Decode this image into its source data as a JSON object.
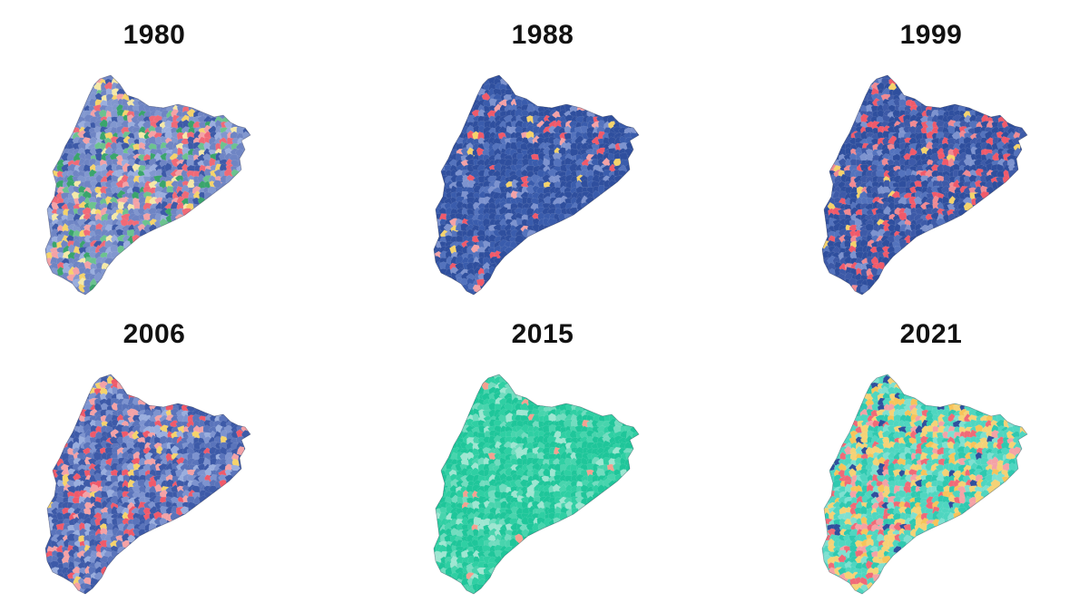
{
  "maps": [
    {
      "year": "1980",
      "palette": [
        "#6f85c4",
        "#8197cf",
        "#3d5aa8",
        "#9aaede",
        "#f06a77",
        "#f4a2a6",
        "#3aa56c",
        "#6cc38f",
        "#f5d36b",
        "#f5e9a8"
      ],
      "weights": [
        26,
        18,
        12,
        8,
        8,
        6,
        7,
        6,
        5,
        4
      ]
    },
    {
      "year": "1988",
      "palette": [
        "#2f4f9e",
        "#3a5cac",
        "#5473bd",
        "#7d93cf",
        "#f05a6a",
        "#f4a2a6",
        "#f5d36b"
      ],
      "weights": [
        44,
        28,
        12,
        8,
        5,
        2,
        1
      ]
    },
    {
      "year": "1999",
      "palette": [
        "#2f4f9e",
        "#3d5aa8",
        "#5473bd",
        "#7d93cf",
        "#f05a6a",
        "#f08a92",
        "#f5d36b"
      ],
      "weights": [
        36,
        24,
        14,
        8,
        11,
        5,
        2
      ]
    },
    {
      "year": "2006",
      "palette": [
        "#3d5aa8",
        "#5a74bb",
        "#7d93cf",
        "#9aaede",
        "#f05a6a",
        "#f4a2a6",
        "#f5d36b"
      ],
      "weights": [
        30,
        24,
        16,
        8,
        10,
        8,
        4
      ]
    },
    {
      "year": "2015",
      "palette": [
        "#1fc69a",
        "#2fcfa3",
        "#48d4ad",
        "#72dcbf",
        "#9ee6d1",
        "#f5a090"
      ],
      "weights": [
        42,
        24,
        14,
        10,
        8,
        2
      ]
    },
    {
      "year": "2021",
      "palette": [
        "#4fd6c0",
        "#2fc9b0",
        "#7fe0d0",
        "#f5d276",
        "#f7c45a",
        "#f06a77",
        "#f4a2a6",
        "#2f4f9e"
      ],
      "weights": [
        28,
        16,
        10,
        18,
        8,
        10,
        6,
        4
      ]
    }
  ]
}
